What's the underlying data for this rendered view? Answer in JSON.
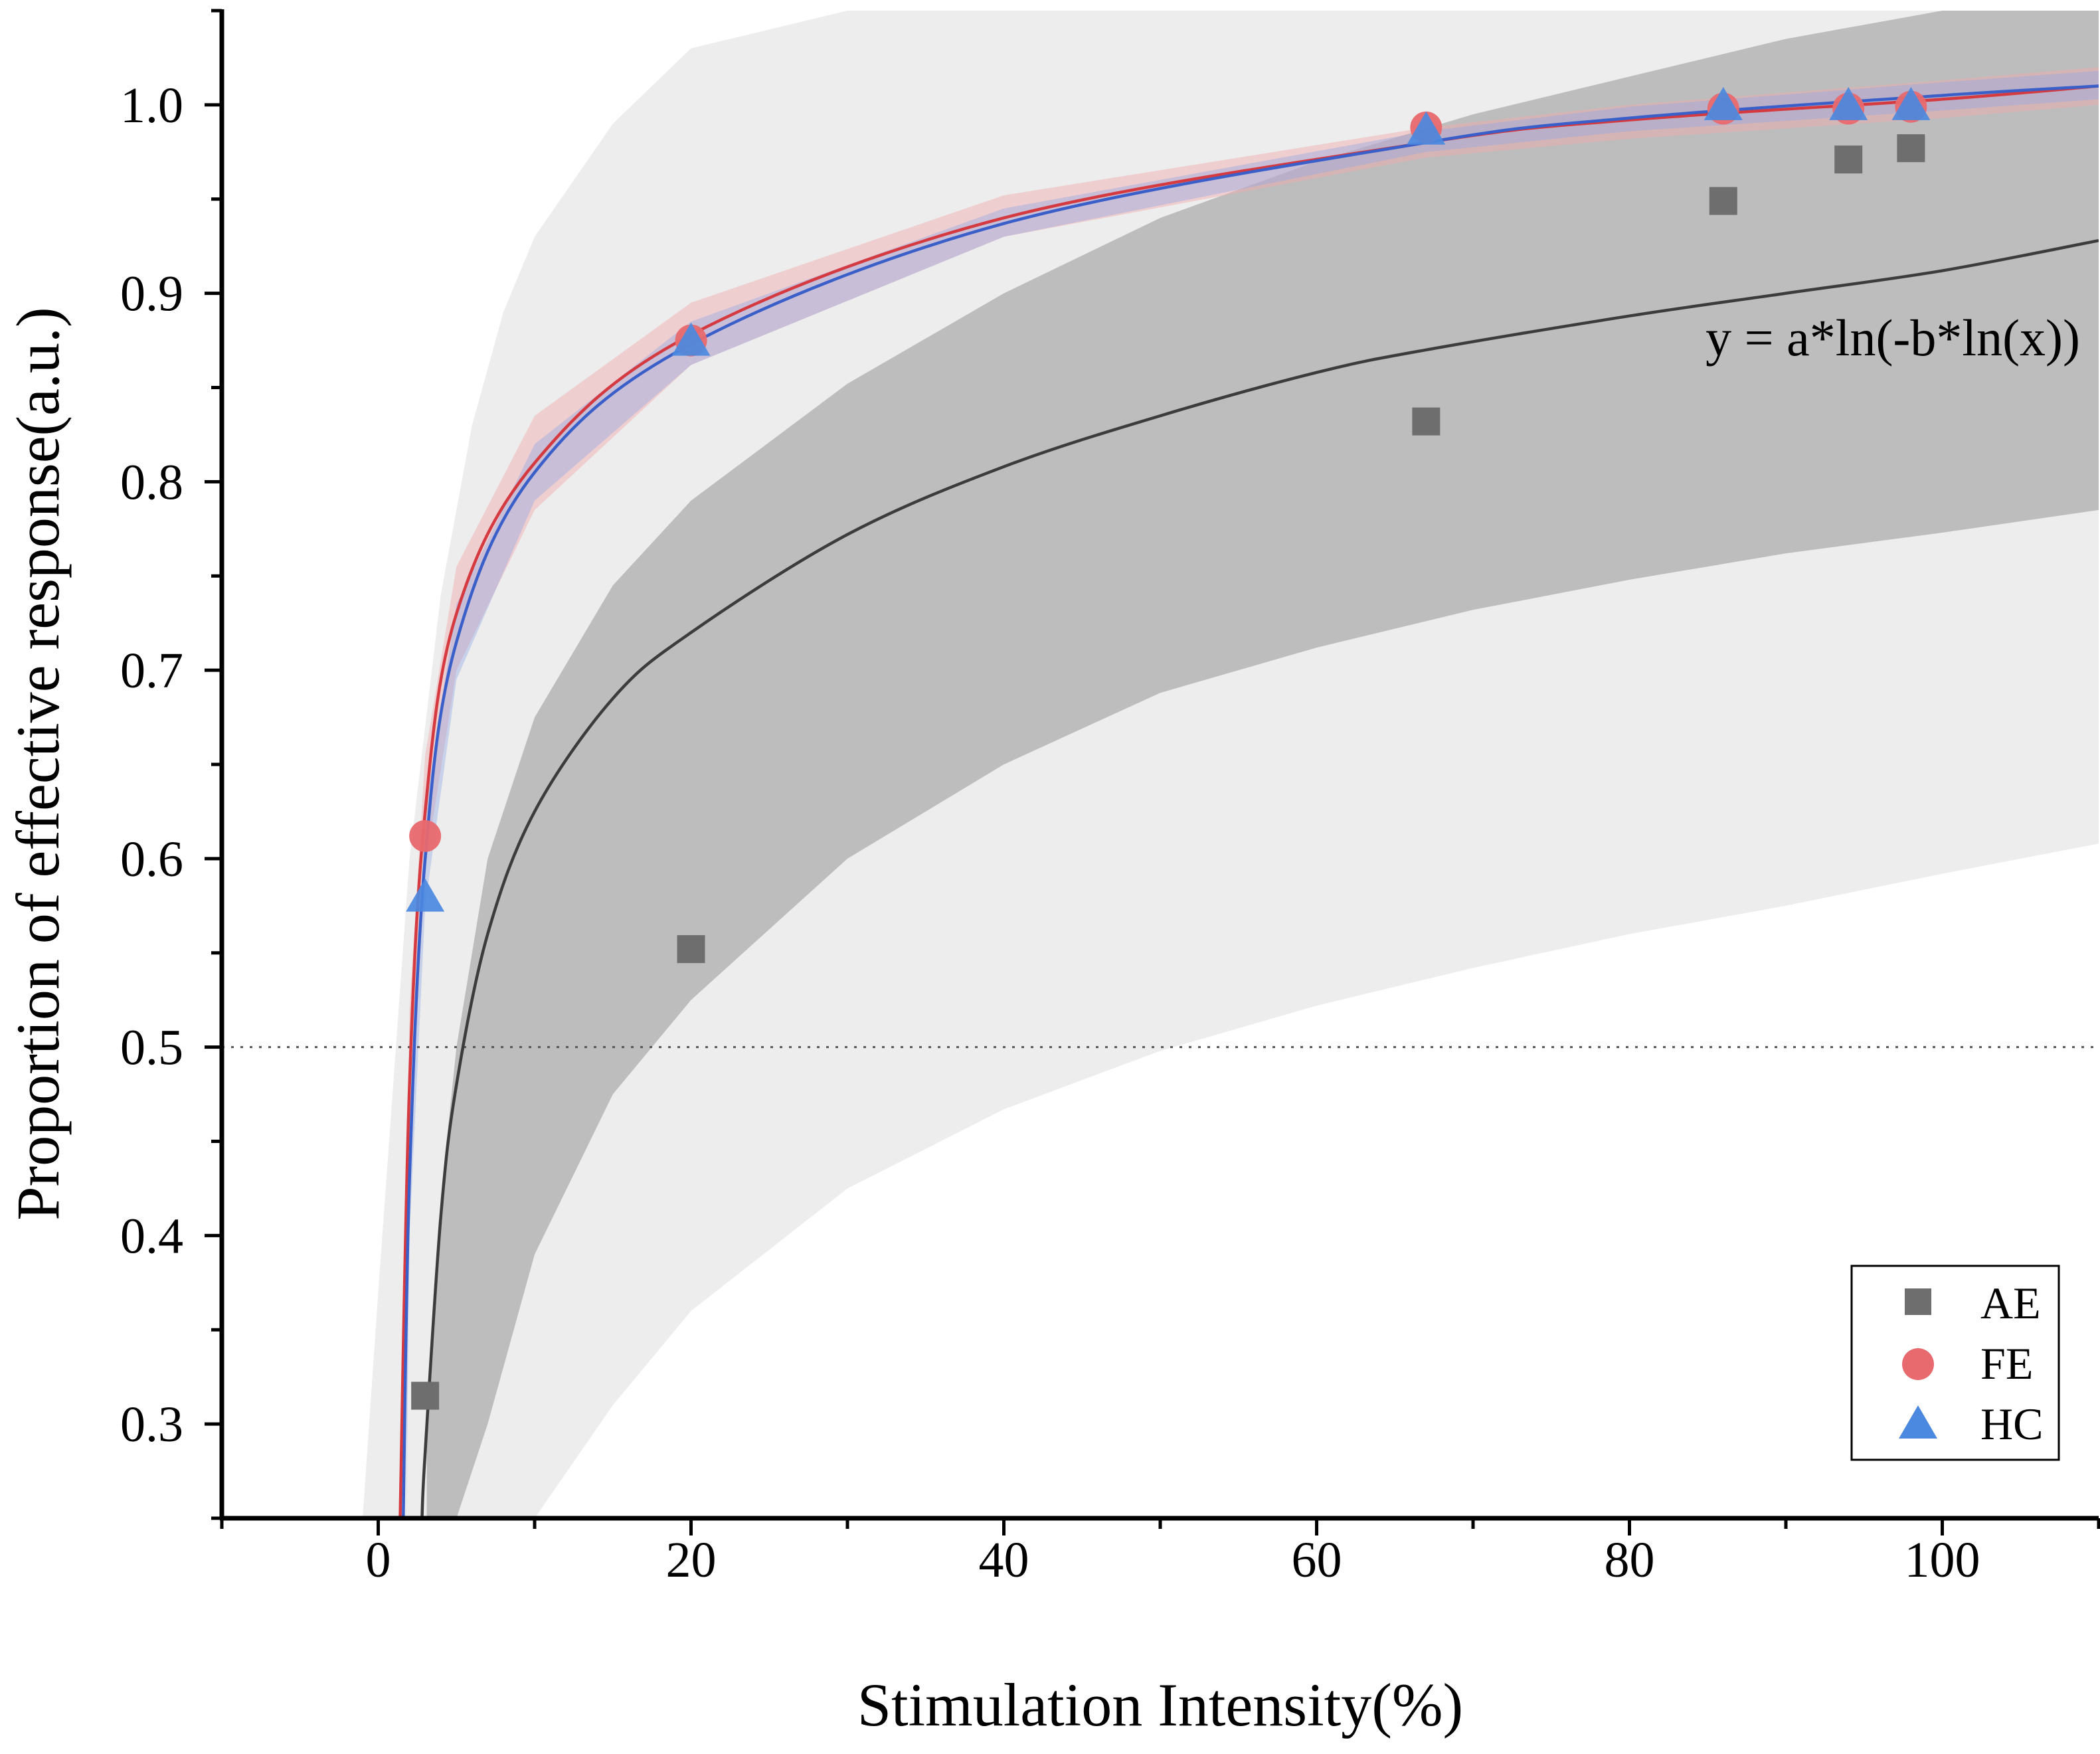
{
  "chart_data": {
    "type": "scatter",
    "xlabel": "Stimulation Intensity(%)",
    "ylabel": "Proportion of effective response(a.u.)",
    "xlim": [
      -10,
      110
    ],
    "ylim": [
      0.25,
      1.05
    ],
    "xticks": [
      0,
      20,
      40,
      60,
      80,
      100
    ],
    "yticks": [
      0.3,
      0.4,
      0.5,
      0.6,
      0.7,
      0.8,
      0.9,
      1.0
    ],
    "xtick_labels": [
      "0",
      "20",
      "40",
      "60",
      "80",
      "100"
    ],
    "ytick_labels": [
      "0.3",
      "0.4",
      "0.5",
      "0.6",
      "0.7",
      "0.8",
      "0.9",
      "1.0"
    ],
    "reference_line": {
      "y": 0.5,
      "style": "dotted"
    },
    "equation": "y = a*ln(-b*ln(x))",
    "legend_position": "bottom-right",
    "series": [
      {
        "name": "AE",
        "marker": "square",
        "color": "#6e6e6e",
        "line_color": "#3c3c3c",
        "x": [
          3,
          20,
          67,
          86,
          94,
          98
        ],
        "y": [
          0.315,
          0.552,
          0.832,
          0.949,
          0.971,
          0.977
        ],
        "fit": {
          "x": [
            2.8,
            3,
            4,
            5,
            7,
            10,
            15,
            20,
            30,
            40,
            50,
            60,
            67,
            80,
            90,
            100,
            110
          ],
          "y": [
            0.25,
            0.285,
            0.41,
            0.48,
            0.56,
            0.625,
            0.685,
            0.72,
            0.772,
            0.808,
            0.835,
            0.858,
            0.87,
            0.888,
            0.9,
            0.912,
            0.928
          ]
        },
        "confidence_band": {
          "x": [
            3.1,
            4,
            5,
            7,
            10,
            15,
            20,
            30,
            40,
            50,
            60,
            70,
            80,
            90,
            100,
            110
          ],
          "lower": [
            0.25,
            0.25,
            0.25,
            0.3,
            0.39,
            0.475,
            0.525,
            0.6,
            0.65,
            0.688,
            0.712,
            0.732,
            0.748,
            0.762,
            0.773,
            0.785
          ],
          "upper": [
            0.29,
            0.42,
            0.5,
            0.6,
            0.675,
            0.745,
            0.79,
            0.852,
            0.9,
            0.94,
            0.97,
            0.995,
            1.015,
            1.035,
            1.05,
            1.05
          ]
        },
        "prediction_band": {
          "x": [
            -1,
            0,
            2,
            4,
            6,
            8,
            10,
            15,
            20,
            30,
            40,
            50,
            60,
            70,
            80,
            90,
            100,
            110
          ],
          "lower": [
            0.25,
            0.25,
            0.25,
            0.25,
            0.25,
            0.25,
            0.25,
            0.31,
            0.36,
            0.425,
            0.467,
            0.498,
            0.522,
            0.542,
            0.56,
            0.575,
            0.592,
            0.608
          ],
          "upper": [
            0.25,
            0.37,
            0.6,
            0.74,
            0.83,
            0.89,
            0.93,
            0.99,
            1.03,
            1.05,
            1.05,
            1.05,
            1.05,
            1.05,
            1.05,
            1.05,
            1.05,
            1.05
          ]
        }
      },
      {
        "name": "FE",
        "marker": "circle",
        "color": "#e8696e",
        "line_color": "#d43a3f",
        "x": [
          3,
          20,
          67,
          86,
          94,
          98
        ],
        "y": [
          0.612,
          0.875,
          0.988,
          0.998,
          0.998,
          0.999
        ],
        "fit": {
          "x": [
            1.4,
            2,
            3,
            5,
            10,
            20,
            40,
            67,
            80,
            100,
            110
          ],
          "y": [
            0.25,
            0.48,
            0.625,
            0.73,
            0.81,
            0.878,
            0.94,
            0.98,
            0.992,
            1.003,
            1.01
          ]
        },
        "confidence_band": {
          "x": [
            1.6,
            2,
            3,
            5,
            10,
            20,
            40,
            67,
            80,
            100,
            110
          ],
          "lower": [
            0.25,
            0.44,
            0.595,
            0.7,
            0.785,
            0.862,
            0.93,
            0.972,
            0.982,
            0.993,
            1.0
          ],
          "upper": [
            0.33,
            0.52,
            0.655,
            0.755,
            0.835,
            0.895,
            0.952,
            0.988,
            1.0,
            1.013,
            1.02
          ]
        }
      },
      {
        "name": "HC",
        "marker": "triangle",
        "color": "#4b89e0",
        "line_color": "#3a5fc8",
        "x": [
          3,
          20,
          67,
          86,
          94,
          98
        ],
        "y": [
          0.58,
          0.875,
          0.987,
          1.0,
          1.0,
          1.0
        ],
        "fit": {
          "x": [
            1.6,
            2,
            3,
            5,
            10,
            20,
            40,
            67,
            80,
            100,
            110
          ],
          "y": [
            0.25,
            0.43,
            0.6,
            0.715,
            0.805,
            0.873,
            0.937,
            0.98,
            0.993,
            1.005,
            1.01
          ]
        },
        "confidence_band": {
          "x": [
            1.8,
            2,
            3,
            5,
            10,
            20,
            40,
            67,
            80,
            100,
            110
          ],
          "lower": [
            0.25,
            0.4,
            0.575,
            0.695,
            0.79,
            0.862,
            0.93,
            0.975,
            0.986,
            0.997,
            1.003
          ],
          "upper": [
            0.3,
            0.46,
            0.625,
            0.735,
            0.82,
            0.885,
            0.945,
            0.986,
            0.999,
            1.012,
            1.018
          ]
        }
      }
    ]
  }
}
